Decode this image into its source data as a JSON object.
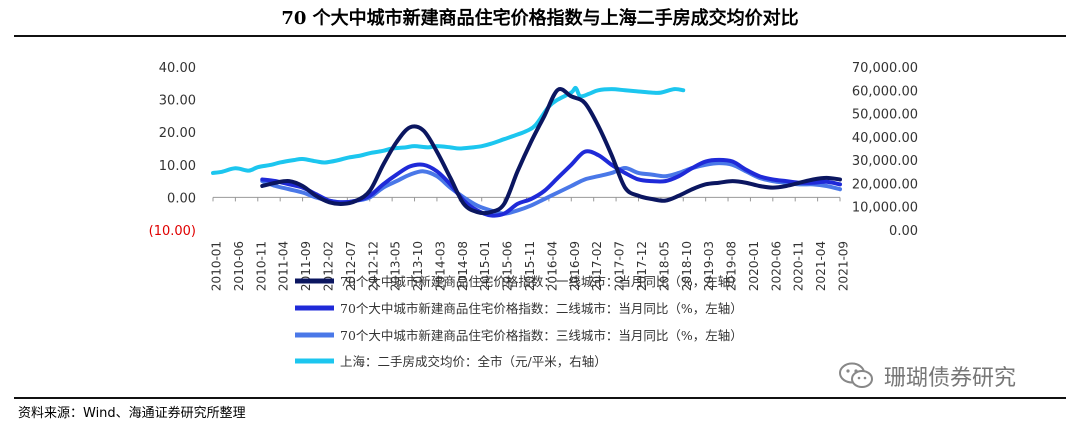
{
  "header": {
    "title": "70 个大中城市新建商品住宅价格指数与上海二手房成交均价对比"
  },
  "footer": {
    "source": "资料来源：Wind、海通证券研究所整理"
  },
  "watermark": {
    "text": "珊瑚债券研究",
    "icon": "wechat-icon"
  },
  "chart_data": {
    "type": "line",
    "y_left": {
      "ticks": [
        -10,
        0,
        10,
        20,
        30,
        40
      ],
      "tick_labels": [
        "(10.00)",
        "0.00",
        "10.00",
        "20.00",
        "30.00",
        "40.00"
      ],
      "ylim": [
        -10,
        40
      ],
      "negative_color": "#e00000"
    },
    "y_right": {
      "ticks": [
        0,
        10000,
        20000,
        30000,
        40000,
        50000,
        60000,
        70000
      ],
      "tick_labels": [
        "0.00",
        "10,000.00",
        "20,000.00",
        "30,000.00",
        "40,000.00",
        "50,000.00",
        "60,000.00",
        "70,000.00"
      ],
      "ylim": [
        0,
        70000
      ]
    },
    "x": {
      "tick_labels": [
        "2010-01",
        "2010-06",
        "2010-11",
        "2011-04",
        "2011-09",
        "2012-02",
        "2012-07",
        "2012-12",
        "2013-05",
        "2013-10",
        "2014-03",
        "2014-08",
        "2015-01",
        "2015-06",
        "2015-11",
        "2016-04",
        "2016-09",
        "2017-02",
        "2017-07",
        "2017-12",
        "2018-05",
        "2018-10",
        "2019-03",
        "2019-08",
        "2020-01",
        "2020-06",
        "2020-11",
        "2021-04",
        "2021-09"
      ]
    },
    "series": [
      {
        "name": "70个大中城市新建商品住宅价格指数：一线城市：当月同比（%，左轴）",
        "axis": "left",
        "color": "#0b1660",
        "points": [
          [
            "2010-12",
            3.5
          ],
          [
            "2011-03",
            4.5
          ],
          [
            "2011-06",
            5
          ],
          [
            "2011-09",
            3.5
          ],
          [
            "2011-12",
            0.5
          ],
          [
            "2012-03",
            -1.5
          ],
          [
            "2012-06",
            -2
          ],
          [
            "2012-09",
            -1
          ],
          [
            "2012-12",
            2
          ],
          [
            "2013-03",
            10
          ],
          [
            "2013-06",
            17
          ],
          [
            "2013-09",
            21.5
          ],
          [
            "2013-12",
            20.5
          ],
          [
            "2014-03",
            14
          ],
          [
            "2014-06",
            6
          ],
          [
            "2014-09",
            -2
          ],
          [
            "2014-12",
            -4.5
          ],
          [
            "2015-03",
            -4.5
          ],
          [
            "2015-06",
            -2
          ],
          [
            "2015-09",
            8
          ],
          [
            "2015-12",
            17
          ],
          [
            "2016-03",
            25
          ],
          [
            "2016-06",
            33
          ],
          [
            "2016-09",
            31
          ],
          [
            "2016-12",
            29
          ],
          [
            "2017-03",
            22
          ],
          [
            "2017-06",
            13
          ],
          [
            "2017-09",
            3
          ],
          [
            "2017-12",
            0.5
          ],
          [
            "2018-03",
            -0.5
          ],
          [
            "2018-06",
            -1
          ],
          [
            "2018-09",
            0.5
          ],
          [
            "2018-12",
            2.5
          ],
          [
            "2019-03",
            4
          ],
          [
            "2019-06",
            4.5
          ],
          [
            "2019-09",
            5
          ],
          [
            "2019-12",
            4.5
          ],
          [
            "2020-03",
            3.5
          ],
          [
            "2020-06",
            3
          ],
          [
            "2020-09",
            3.5
          ],
          [
            "2020-12",
            4.5
          ],
          [
            "2021-03",
            5.5
          ],
          [
            "2021-06",
            6
          ],
          [
            "2021-09",
            5.5
          ]
        ]
      },
      {
        "name": "70个大中城市新建商品住宅价格指数：二线城市：当月同比（%，左轴）",
        "axis": "left",
        "color": "#1f2ad8",
        "points": [
          [
            "2010-12",
            5.5
          ],
          [
            "2011-03",
            5
          ],
          [
            "2011-06",
            4
          ],
          [
            "2011-09",
            3
          ],
          [
            "2011-12",
            1
          ],
          [
            "2012-03",
            -1
          ],
          [
            "2012-06",
            -1.5
          ],
          [
            "2012-09",
            -1
          ],
          [
            "2012-12",
            0.5
          ],
          [
            "2013-03",
            4
          ],
          [
            "2013-06",
            7
          ],
          [
            "2013-09",
            9.5
          ],
          [
            "2013-12",
            10
          ],
          [
            "2014-03",
            8
          ],
          [
            "2014-06",
            4
          ],
          [
            "2014-09",
            -1
          ],
          [
            "2014-12",
            -4
          ],
          [
            "2015-03",
            -5.5
          ],
          [
            "2015-06",
            -5
          ],
          [
            "2015-09",
            -2
          ],
          [
            "2015-12",
            -0.5
          ],
          [
            "2016-03",
            2
          ],
          [
            "2016-06",
            6
          ],
          [
            "2016-09",
            10
          ],
          [
            "2016-12",
            14
          ],
          [
            "2017-03",
            13
          ],
          [
            "2017-06",
            10
          ],
          [
            "2017-09",
            7.5
          ],
          [
            "2017-12",
            5.5
          ],
          [
            "2018-03",
            5
          ],
          [
            "2018-06",
            5
          ],
          [
            "2018-09",
            6.5
          ],
          [
            "2018-12",
            9
          ],
          [
            "2019-03",
            11
          ],
          [
            "2019-06",
            11.5
          ],
          [
            "2019-09",
            11
          ],
          [
            "2019-12",
            8.5
          ],
          [
            "2020-03",
            6.5
          ],
          [
            "2020-06",
            5.5
          ],
          [
            "2020-09",
            5
          ],
          [
            "2020-12",
            4.5
          ],
          [
            "2021-03",
            4.5
          ],
          [
            "2021-06",
            4.8
          ],
          [
            "2021-09",
            4
          ]
        ]
      },
      {
        "name": "70个大中城市新建商品住宅价格指数：三线城市：当月同比（%，左轴）",
        "axis": "left",
        "color": "#4a78e8",
        "points": [
          [
            "2010-12",
            5
          ],
          [
            "2011-03",
            3.5
          ],
          [
            "2011-06",
            2.5
          ],
          [
            "2011-09",
            1.5
          ],
          [
            "2011-12",
            0
          ],
          [
            "2012-03",
            -1
          ],
          [
            "2012-06",
            -1.5
          ],
          [
            "2012-09",
            -1
          ],
          [
            "2012-12",
            0
          ],
          [
            "2013-03",
            3
          ],
          [
            "2013-06",
            5
          ],
          [
            "2013-09",
            7
          ],
          [
            "2013-12",
            8
          ],
          [
            "2014-03",
            6.5
          ],
          [
            "2014-06",
            3
          ],
          [
            "2014-09",
            0
          ],
          [
            "2014-12",
            -2.5
          ],
          [
            "2015-03",
            -4
          ],
          [
            "2015-06",
            -5
          ],
          [
            "2015-09",
            -4
          ],
          [
            "2015-12",
            -2.5
          ],
          [
            "2016-03",
            -0.5
          ],
          [
            "2016-06",
            1.5
          ],
          [
            "2016-09",
            3.5
          ],
          [
            "2016-12",
            5.5
          ],
          [
            "2017-03",
            6.5
          ],
          [
            "2017-06",
            7.5
          ],
          [
            "2017-09",
            9
          ],
          [
            "2017-12",
            7.5
          ],
          [
            "2018-03",
            7
          ],
          [
            "2018-06",
            6.5
          ],
          [
            "2018-09",
            7.5
          ],
          [
            "2018-12",
            9
          ],
          [
            "2019-03",
            10
          ],
          [
            "2019-06",
            10.5
          ],
          [
            "2019-09",
            10
          ],
          [
            "2019-12",
            8
          ],
          [
            "2020-03",
            6
          ],
          [
            "2020-06",
            5
          ],
          [
            "2020-09",
            4.5
          ],
          [
            "2020-12",
            4
          ],
          [
            "2021-03",
            4
          ],
          [
            "2021-06",
            3.5
          ],
          [
            "2021-09",
            2.5
          ]
        ]
      },
      {
        "name": "上海：二手房成交均价：全市（元/平米，右轴）",
        "axis": "right",
        "color": "#1cc6ef",
        "points": [
          [
            "2010-01",
            24500
          ],
          [
            "2010-03",
            25000
          ],
          [
            "2010-06",
            26500
          ],
          [
            "2010-09",
            25500
          ],
          [
            "2010-11",
            27000
          ],
          [
            "2011-02",
            28000
          ],
          [
            "2011-04",
            29000
          ],
          [
            "2011-07",
            30000
          ],
          [
            "2011-09",
            30500
          ],
          [
            "2011-12",
            29500
          ],
          [
            "2012-02",
            29000
          ],
          [
            "2012-05",
            30000
          ],
          [
            "2012-07",
            31000
          ],
          [
            "2012-10",
            32000
          ],
          [
            "2012-12",
            33000
          ],
          [
            "2013-03",
            34000
          ],
          [
            "2013-05",
            35000
          ],
          [
            "2013-08",
            35500
          ],
          [
            "2013-10",
            36000
          ],
          [
            "2014-01",
            35500
          ],
          [
            "2014-03",
            36000
          ],
          [
            "2014-06",
            35500
          ],
          [
            "2014-08",
            35000
          ],
          [
            "2014-11",
            35500
          ],
          [
            "2015-01",
            36000
          ],
          [
            "2015-03",
            37000
          ],
          [
            "2015-06",
            39000
          ],
          [
            "2015-09",
            41000
          ],
          [
            "2015-11",
            42500
          ],
          [
            "2016-01",
            45000
          ],
          [
            "2016-04",
            53000
          ],
          [
            "2016-06",
            56000
          ],
          [
            "2016-09",
            59000
          ],
          [
            "2016-10",
            61000
          ],
          [
            "2016-11",
            57500
          ],
          [
            "2017-01",
            58500
          ],
          [
            "2017-03",
            60000
          ],
          [
            "2017-06",
            60500
          ],
          [
            "2017-09",
            60000
          ],
          [
            "2017-12",
            59500
          ],
          [
            "2018-03",
            59000
          ],
          [
            "2018-05",
            59000
          ],
          [
            "2018-08",
            60500
          ],
          [
            "2018-10",
            60000
          ]
        ]
      }
    ]
  }
}
